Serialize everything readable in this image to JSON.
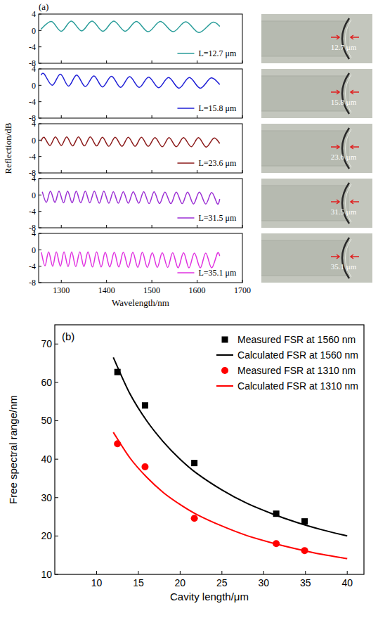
{
  "chart_data": [
    {
      "type": "line",
      "title": "(a)",
      "xlim": [
        1250,
        1700
      ],
      "xticks": [
        1300,
        1400,
        1500,
        1600,
        1700
      ],
      "ylim": [
        -8,
        4
      ],
      "yticks": [
        -8,
        -4,
        0,
        4
      ],
      "tick_labels": "y",
      "legend": "lower right",
      "annotations": [
        "12.7 μm"
      ],
      "series": [
        {
          "name": "L=12.7 μm",
          "color": "#2a9d9a",
          "x": [
            1255,
            1278,
            1300,
            1322,
            1345,
            1368,
            1392,
            1416,
            1441,
            1466,
            1492,
            1519,
            1547,
            1575,
            1604,
            1634,
            1650
          ],
          "values": [
            0.3,
            2.2,
            -0.2,
            2.3,
            -0.1,
            2.3,
            -0.2,
            2.3,
            -0.2,
            2.2,
            -0.3,
            2.2,
            -0.3,
            2.1,
            -0.5,
            2.0,
            1.0
          ]
        }
      ]
    },
    {
      "type": "line",
      "xlim": [
        1250,
        1700
      ],
      "xticks": [
        1300,
        1400,
        1500,
        1600,
        1700
      ],
      "ylim": [
        -8,
        4
      ],
      "yticks": [
        -8,
        -4,
        0,
        4
      ],
      "tick_labels": "y",
      "legend": "lower right",
      "annotations": [
        "15.8 μm"
      ],
      "series": [
        {
          "name": "L=15.8 μm",
          "color": "#1f1fd6",
          "x": [
            1255,
            1262,
            1280,
            1298,
            1316,
            1334,
            1353,
            1372,
            1391,
            1411,
            1431,
            1451,
            1472,
            1493,
            1515,
            1537,
            1560,
            1583,
            1607,
            1631,
            1650
          ],
          "values": [
            2.5,
            2.8,
            0.0,
            2.7,
            -0.2,
            2.5,
            -0.3,
            2.3,
            -0.4,
            2.2,
            -0.5,
            2.1,
            -0.5,
            2.0,
            -0.6,
            1.9,
            -0.7,
            1.9,
            -0.7,
            1.8,
            0.2
          ]
        }
      ]
    },
    {
      "type": "line",
      "xlim": [
        1250,
        1700
      ],
      "xticks": [
        1300,
        1400,
        1500,
        1600,
        1700
      ],
      "ylim": [
        -8,
        4
      ],
      "yticks": [
        -8,
        -4,
        0,
        4
      ],
      "tick_labels": "y",
      "legend": "lower right",
      "ylabel": "Reflection/dB",
      "annotations": [
        "23.6 μm"
      ],
      "series": [
        {
          "name": "L=23.6 μm",
          "color": "#8b1a1a",
          "x": [
            1255,
            1262,
            1275,
            1287,
            1300,
            1312,
            1325,
            1338,
            1351,
            1364,
            1378,
            1391,
            1405,
            1419,
            1434,
            1448,
            1463,
            1477,
            1492,
            1507,
            1523,
            1538,
            1554,
            1570,
            1587,
            1603,
            1620,
            1637,
            1650
          ],
          "values": [
            -0.3,
            0.7,
            -1.3,
            0.8,
            -1.3,
            0.8,
            -1.4,
            0.8,
            -1.4,
            0.8,
            -1.4,
            0.7,
            -1.5,
            0.7,
            -1.5,
            0.7,
            -1.5,
            0.7,
            -1.5,
            0.6,
            -1.6,
            0.6,
            -1.6,
            0.6,
            -1.6,
            0.6,
            -1.7,
            0.5,
            -0.8
          ]
        }
      ]
    },
    {
      "type": "line",
      "xlim": [
        1250,
        1700
      ],
      "xticks": [
        1300,
        1400,
        1500,
        1600,
        1700
      ],
      "ylim": [
        -8,
        4
      ],
      "yticks": [
        -8,
        -4,
        0,
        4
      ],
      "tick_labels": "y",
      "legend": "lower right",
      "annotations": [
        "31.5 μm"
      ],
      "series": [
        {
          "name": "L=31.5 μm",
          "color": "#9b2fd4",
          "x": [
            1258,
            1267,
            1276,
            1286,
            1295,
            1305,
            1314,
            1324,
            1333,
            1343,
            1353,
            1363,
            1373,
            1384,
            1394,
            1405,
            1415,
            1426,
            1437,
            1448,
            1459,
            1471,
            1482,
            1494,
            1505,
            1517,
            1529,
            1542,
            1554,
            1567,
            1579,
            1592,
            1605,
            1619,
            1632,
            1645,
            1650
          ],
          "values": [
            0.8,
            -1.8,
            0.9,
            -1.8,
            0.9,
            -1.9,
            0.9,
            -1.9,
            0.9,
            -1.9,
            0.9,
            -1.9,
            0.9,
            -2.0,
            0.9,
            -2.0,
            0.8,
            -2.0,
            0.8,
            -2.0,
            0.8,
            -2.0,
            0.8,
            -2.1,
            0.8,
            -2.1,
            0.7,
            -2.1,
            0.7,
            -2.1,
            0.7,
            -2.2,
            0.7,
            -2.2,
            0.6,
            -2.2,
            -1.0
          ]
        }
      ]
    },
    {
      "type": "line",
      "xlim": [
        1250,
        1700
      ],
      "xticks": [
        1300,
        1400,
        1500,
        1600,
        1700
      ],
      "ylim": [
        -8,
        4
      ],
      "yticks": [
        -8,
        -4,
        0,
        4
      ],
      "legend": "lower right",
      "xlabel": "Wavelength/nm",
      "annotations": [
        "35.1 μm"
      ],
      "series": [
        {
          "name": "L=35.1 μm",
          "color": "#e030e0",
          "x": [
            1256,
            1264,
            1272,
            1281,
            1289,
            1298,
            1306,
            1315,
            1323,
            1332,
            1341,
            1350,
            1359,
            1369,
            1378,
            1388,
            1397,
            1407,
            1417,
            1427,
            1437,
            1448,
            1458,
            1469,
            1479,
            1490,
            1501,
            1512,
            1523,
            1535,
            1546,
            1558,
            1570,
            1582,
            1594,
            1607,
            1619,
            1632,
            1645,
            1650
          ],
          "values": [
            -0.6,
            -3.9,
            -0.5,
            -4.0,
            -0.5,
            -4.0,
            -0.5,
            -4.1,
            -0.5,
            -4.1,
            -0.5,
            -4.1,
            -0.5,
            -4.2,
            -0.5,
            -4.2,
            -0.6,
            -4.2,
            -0.6,
            -4.2,
            -0.6,
            -4.3,
            -0.6,
            -4.3,
            -0.6,
            -4.3,
            -0.7,
            -4.3,
            -0.7,
            -4.3,
            -0.7,
            -4.4,
            -0.7,
            -4.4,
            -0.8,
            -4.4,
            -0.8,
            -4.4,
            -0.8,
            -1.5
          ]
        }
      ]
    },
    {
      "type": "scatter",
      "title": "(b)",
      "xlabel": "Cavity length/μm",
      "ylabel": "Free spectral range/nm",
      "xlim": [
        5,
        42
      ],
      "xticks": [
        10,
        15,
        20,
        25,
        30,
        35,
        40
      ],
      "ylim": [
        10,
        75
      ],
      "yticks": [
        10,
        20,
        30,
        40,
        50,
        60,
        70
      ],
      "legend": "upper right",
      "series": [
        {
          "name": "Measured FSR at 1560 nm",
          "type": "scatter",
          "marker": "square",
          "color": "#000000",
          "x": [
            12.5,
            15.8,
            21.7,
            31.5,
            34.9
          ],
          "values": [
            62.7,
            54,
            39,
            25.8,
            23.8
          ]
        },
        {
          "name": "Calculated FSR at 1560 nm",
          "type": "line",
          "color": "#000000",
          "x": [
            12,
            14,
            16,
            18,
            20,
            22,
            25,
            28,
            31,
            34,
            37,
            40
          ],
          "values": [
            66.5,
            57,
            50,
            44.5,
            40,
            36.3,
            32,
            28.5,
            25.8,
            23.5,
            21.6,
            20
          ]
        },
        {
          "name": "Measured FSR at 1310 nm",
          "type": "scatter",
          "marker": "circle",
          "color": "#ff0000",
          "x": [
            12.5,
            15.8,
            21.7,
            31.5,
            34.9
          ],
          "values": [
            44,
            38,
            24.6,
            18,
            16.2
          ]
        },
        {
          "name": "Calculated FSR at 1310 nm",
          "type": "line",
          "color": "#ff0000",
          "x": [
            12,
            14,
            16,
            18,
            20,
            22,
            25,
            28,
            31,
            34,
            37,
            40
          ],
          "values": [
            47,
            40.3,
            35.3,
            31.3,
            28.2,
            25.6,
            22.6,
            20.1,
            18.2,
            16.6,
            15.2,
            14.1
          ]
        }
      ]
    }
  ]
}
